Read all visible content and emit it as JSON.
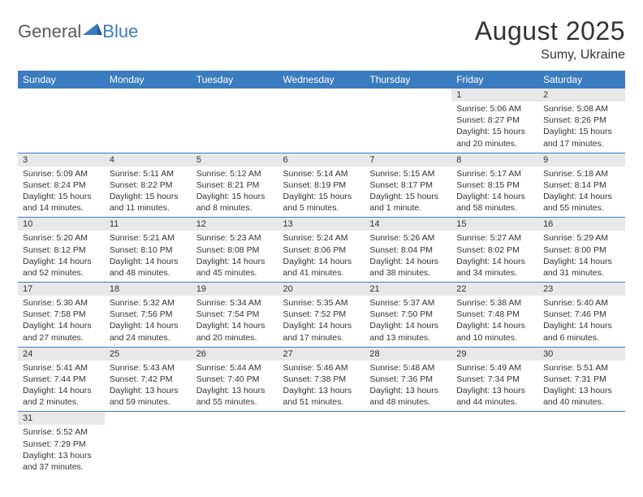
{
  "logo": {
    "text1": "General",
    "text2": "Blue"
  },
  "title": "August 2025",
  "location": "Sumy, Ukraine",
  "colors": {
    "header_bg": "#3b7bbf",
    "header_text": "#ffffff",
    "daynum_bg": "#e8e8e8",
    "row_divider": "#3b7bbf",
    "text": "#333333"
  },
  "day_headers": [
    "Sunday",
    "Monday",
    "Tuesday",
    "Wednesday",
    "Thursday",
    "Friday",
    "Saturday"
  ],
  "weeks": [
    [
      null,
      null,
      null,
      null,
      null,
      {
        "n": "1",
        "sr": "Sunrise: 5:06 AM",
        "ss": "Sunset: 8:27 PM",
        "d1": "Daylight: 15 hours",
        "d2": "and 20 minutes."
      },
      {
        "n": "2",
        "sr": "Sunrise: 5:08 AM",
        "ss": "Sunset: 8:26 PM",
        "d1": "Daylight: 15 hours",
        "d2": "and 17 minutes."
      }
    ],
    [
      {
        "n": "3",
        "sr": "Sunrise: 5:09 AM",
        "ss": "Sunset: 8:24 PM",
        "d1": "Daylight: 15 hours",
        "d2": "and 14 minutes."
      },
      {
        "n": "4",
        "sr": "Sunrise: 5:11 AM",
        "ss": "Sunset: 8:22 PM",
        "d1": "Daylight: 15 hours",
        "d2": "and 11 minutes."
      },
      {
        "n": "5",
        "sr": "Sunrise: 5:12 AM",
        "ss": "Sunset: 8:21 PM",
        "d1": "Daylight: 15 hours",
        "d2": "and 8 minutes."
      },
      {
        "n": "6",
        "sr": "Sunrise: 5:14 AM",
        "ss": "Sunset: 8:19 PM",
        "d1": "Daylight: 15 hours",
        "d2": "and 5 minutes."
      },
      {
        "n": "7",
        "sr": "Sunrise: 5:15 AM",
        "ss": "Sunset: 8:17 PM",
        "d1": "Daylight: 15 hours",
        "d2": "and 1 minute."
      },
      {
        "n": "8",
        "sr": "Sunrise: 5:17 AM",
        "ss": "Sunset: 8:15 PM",
        "d1": "Daylight: 14 hours",
        "d2": "and 58 minutes."
      },
      {
        "n": "9",
        "sr": "Sunrise: 5:18 AM",
        "ss": "Sunset: 8:14 PM",
        "d1": "Daylight: 14 hours",
        "d2": "and 55 minutes."
      }
    ],
    [
      {
        "n": "10",
        "sr": "Sunrise: 5:20 AM",
        "ss": "Sunset: 8:12 PM",
        "d1": "Daylight: 14 hours",
        "d2": "and 52 minutes."
      },
      {
        "n": "11",
        "sr": "Sunrise: 5:21 AM",
        "ss": "Sunset: 8:10 PM",
        "d1": "Daylight: 14 hours",
        "d2": "and 48 minutes."
      },
      {
        "n": "12",
        "sr": "Sunrise: 5:23 AM",
        "ss": "Sunset: 8:08 PM",
        "d1": "Daylight: 14 hours",
        "d2": "and 45 minutes."
      },
      {
        "n": "13",
        "sr": "Sunrise: 5:24 AM",
        "ss": "Sunset: 8:06 PM",
        "d1": "Daylight: 14 hours",
        "d2": "and 41 minutes."
      },
      {
        "n": "14",
        "sr": "Sunrise: 5:26 AM",
        "ss": "Sunset: 8:04 PM",
        "d1": "Daylight: 14 hours",
        "d2": "and 38 minutes."
      },
      {
        "n": "15",
        "sr": "Sunrise: 5:27 AM",
        "ss": "Sunset: 8:02 PM",
        "d1": "Daylight: 14 hours",
        "d2": "and 34 minutes."
      },
      {
        "n": "16",
        "sr": "Sunrise: 5:29 AM",
        "ss": "Sunset: 8:00 PM",
        "d1": "Daylight: 14 hours",
        "d2": "and 31 minutes."
      }
    ],
    [
      {
        "n": "17",
        "sr": "Sunrise: 5:30 AM",
        "ss": "Sunset: 7:58 PM",
        "d1": "Daylight: 14 hours",
        "d2": "and 27 minutes."
      },
      {
        "n": "18",
        "sr": "Sunrise: 5:32 AM",
        "ss": "Sunset: 7:56 PM",
        "d1": "Daylight: 14 hours",
        "d2": "and 24 minutes."
      },
      {
        "n": "19",
        "sr": "Sunrise: 5:34 AM",
        "ss": "Sunset: 7:54 PM",
        "d1": "Daylight: 14 hours",
        "d2": "and 20 minutes."
      },
      {
        "n": "20",
        "sr": "Sunrise: 5:35 AM",
        "ss": "Sunset: 7:52 PM",
        "d1": "Daylight: 14 hours",
        "d2": "and 17 minutes."
      },
      {
        "n": "21",
        "sr": "Sunrise: 5:37 AM",
        "ss": "Sunset: 7:50 PM",
        "d1": "Daylight: 14 hours",
        "d2": "and 13 minutes."
      },
      {
        "n": "22",
        "sr": "Sunrise: 5:38 AM",
        "ss": "Sunset: 7:48 PM",
        "d1": "Daylight: 14 hours",
        "d2": "and 10 minutes."
      },
      {
        "n": "23",
        "sr": "Sunrise: 5:40 AM",
        "ss": "Sunset: 7:46 PM",
        "d1": "Daylight: 14 hours",
        "d2": "and 6 minutes."
      }
    ],
    [
      {
        "n": "24",
        "sr": "Sunrise: 5:41 AM",
        "ss": "Sunset: 7:44 PM",
        "d1": "Daylight: 14 hours",
        "d2": "and 2 minutes."
      },
      {
        "n": "25",
        "sr": "Sunrise: 5:43 AM",
        "ss": "Sunset: 7:42 PM",
        "d1": "Daylight: 13 hours",
        "d2": "and 59 minutes."
      },
      {
        "n": "26",
        "sr": "Sunrise: 5:44 AM",
        "ss": "Sunset: 7:40 PM",
        "d1": "Daylight: 13 hours",
        "d2": "and 55 minutes."
      },
      {
        "n": "27",
        "sr": "Sunrise: 5:46 AM",
        "ss": "Sunset: 7:38 PM",
        "d1": "Daylight: 13 hours",
        "d2": "and 51 minutes."
      },
      {
        "n": "28",
        "sr": "Sunrise: 5:48 AM",
        "ss": "Sunset: 7:36 PM",
        "d1": "Daylight: 13 hours",
        "d2": "and 48 minutes."
      },
      {
        "n": "29",
        "sr": "Sunrise: 5:49 AM",
        "ss": "Sunset: 7:34 PM",
        "d1": "Daylight: 13 hours",
        "d2": "and 44 minutes."
      },
      {
        "n": "30",
        "sr": "Sunrise: 5:51 AM",
        "ss": "Sunset: 7:31 PM",
        "d1": "Daylight: 13 hours",
        "d2": "and 40 minutes."
      }
    ],
    [
      {
        "n": "31",
        "sr": "Sunrise: 5:52 AM",
        "ss": "Sunset: 7:29 PM",
        "d1": "Daylight: 13 hours",
        "d2": "and 37 minutes."
      },
      null,
      null,
      null,
      null,
      null,
      null
    ]
  ]
}
